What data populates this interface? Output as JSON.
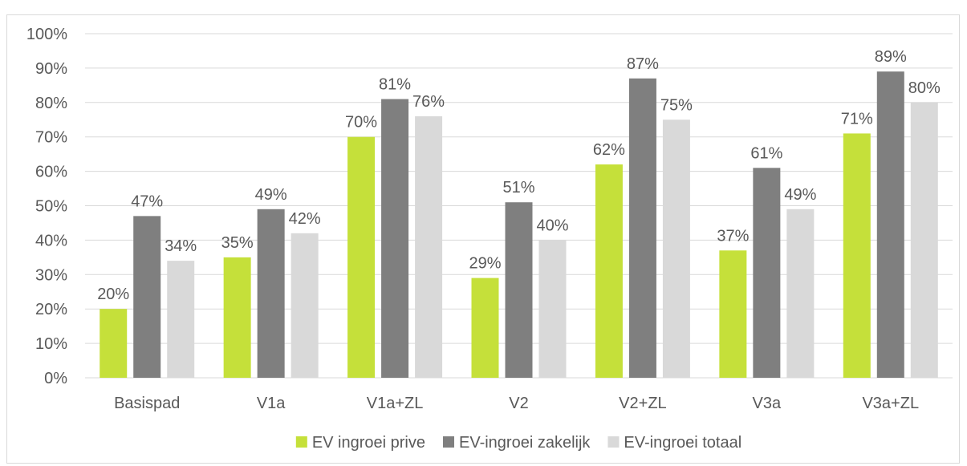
{
  "chart_data": {
    "type": "bar",
    "categories": [
      "Basispad",
      "V1a",
      "V1a+ZL",
      "V2",
      "V2+ZL",
      "V3a",
      "V3a+ZL"
    ],
    "series": [
      {
        "name": "EV ingroei prive",
        "color": "#c5e03a",
        "values": [
          20,
          35,
          70,
          29,
          62,
          37,
          71
        ],
        "labels": [
          "20%",
          "35%",
          "70%",
          "29%",
          "62%",
          "37%",
          "71%"
        ]
      },
      {
        "name": "EV-ingroei zakelijk",
        "color": "#7f7f7f",
        "values": [
          47,
          49,
          81,
          51,
          87,
          61,
          89
        ],
        "labels": [
          "47%",
          "49%",
          "81%",
          "51%",
          "87%",
          "61%",
          "89%"
        ]
      },
      {
        "name": "EV-ingroei totaal",
        "color": "#d9d9d9",
        "values": [
          34,
          42,
          76,
          40,
          75,
          49,
          80
        ],
        "labels": [
          "34%",
          "42%",
          "76%",
          "40%",
          "75%",
          "49%",
          "80%"
        ]
      }
    ],
    "ylim": [
      0,
      100
    ],
    "yticks": [
      0,
      10,
      20,
      30,
      40,
      50,
      60,
      70,
      80,
      90,
      100
    ],
    "ytick_labels": [
      "0%",
      "10%",
      "20%",
      "30%",
      "40%",
      "50%",
      "60%",
      "70%",
      "80%",
      "90%",
      "100%"
    ],
    "grid": true,
    "legend_position": "bottom",
    "title": "",
    "xlabel": "",
    "ylabel": ""
  }
}
